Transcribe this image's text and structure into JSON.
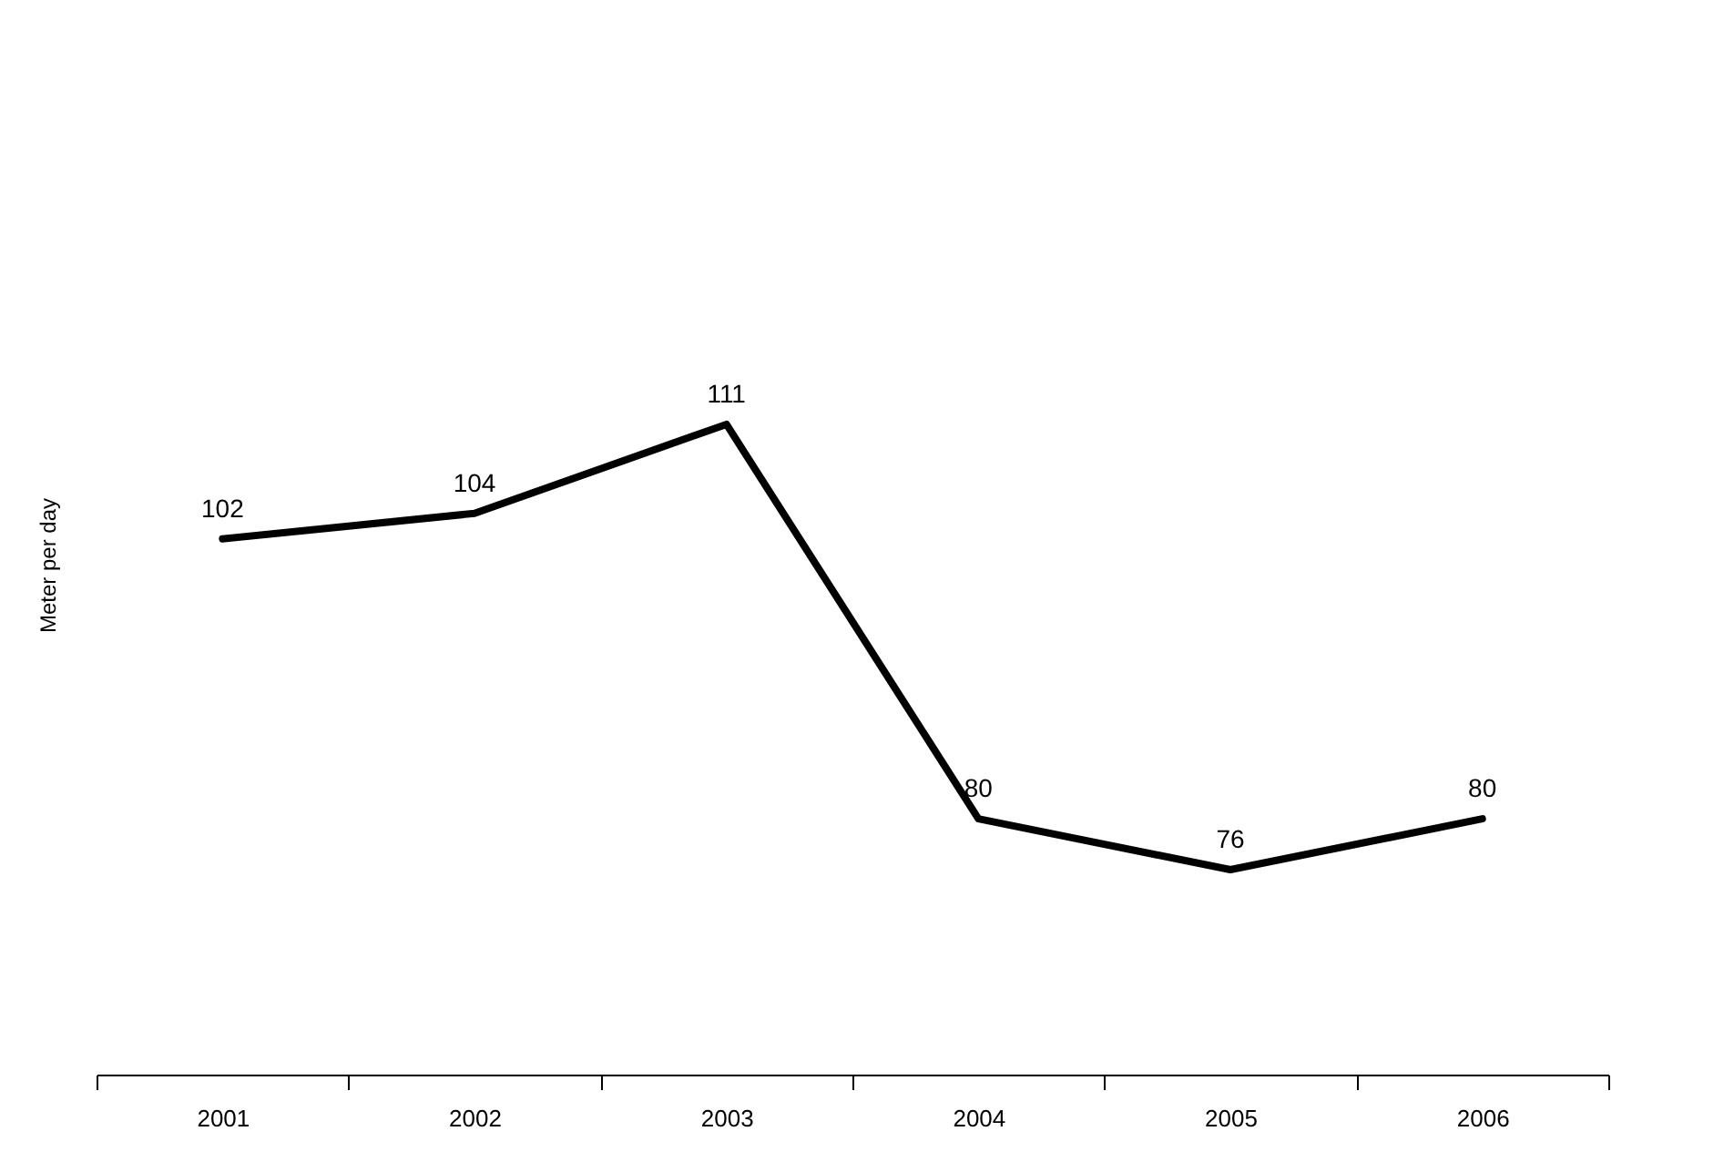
{
  "chart_data": {
    "type": "line",
    "ylabel": "Meter per day",
    "categories": [
      "2001",
      "2002",
      "2003",
      "2004",
      "2005",
      "2006"
    ],
    "series": [
      {
        "color": "#000000",
        "values": [
          102,
          104,
          111,
          80,
          76,
          80
        ]
      }
    ],
    "tick_labels": "x",
    "data_labels": true,
    "grid": false,
    "marker": "none"
  }
}
